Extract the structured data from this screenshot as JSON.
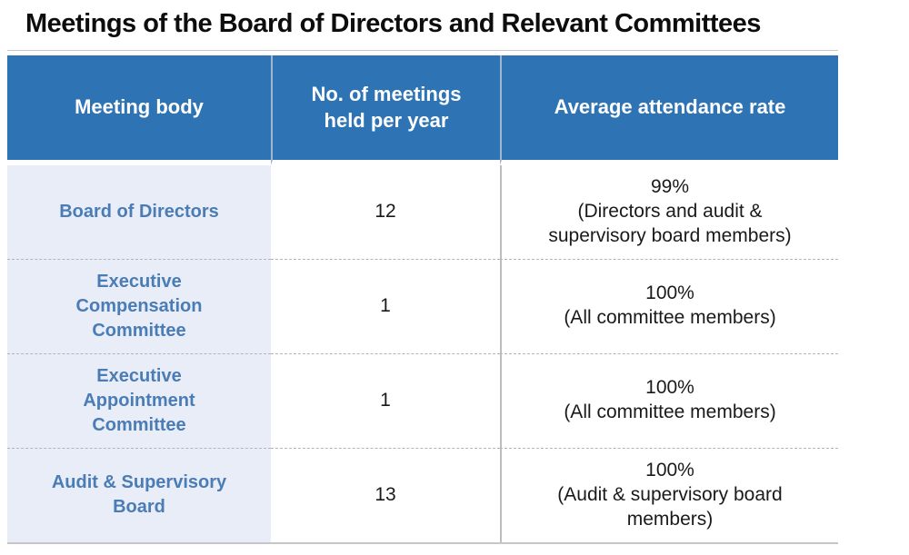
{
  "title": "Meetings of the Board of Directors and Relevant Committees",
  "colors": {
    "header_bg": "#2E74B5",
    "header_text": "#FFFFFF",
    "label_bg": "#E9EDF8",
    "label_text": "#4A7CB5"
  },
  "table": {
    "columns": [
      {
        "label": "Meeting body"
      },
      {
        "label": "No. of meetings\nheld per year"
      },
      {
        "label": "Average attendance rate"
      }
    ],
    "rows": [
      {
        "body": "Board of Directors",
        "meetings": "12",
        "attendance": "99%\n(Directors and audit &\nsupervisory board members)"
      },
      {
        "body": "Executive\nCompensation\nCommittee",
        "meetings": "1",
        "attendance": "100%\n(All committee members)"
      },
      {
        "body": "Executive\nAppointment\nCommittee",
        "meetings": "1",
        "attendance": "100%\n(All committee members)"
      },
      {
        "body": "Audit & Supervisory\nBoard",
        "meetings": "13",
        "attendance": "100%\n(Audit & supervisory board\nmembers)"
      }
    ]
  }
}
